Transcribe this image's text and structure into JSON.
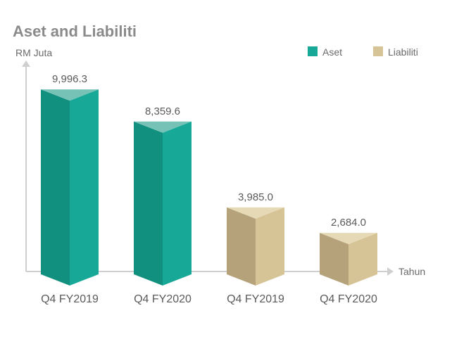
{
  "chart_data": {
    "type": "bar",
    "title": "Aset and Liabiliti",
    "ylabel": "RM Juta",
    "xlabel": "Tahun",
    "categories": [
      "Q4 FY2019",
      "Q4 FY2020",
      "Q4 FY2019",
      "Q4 FY2020"
    ],
    "values": [
      9996.3,
      8359.6,
      3985.0,
      2684.0
    ],
    "value_labels": [
      "9,996.3",
      "8,359.6",
      "3,985.0",
      "2,684.0"
    ],
    "series_of_bar": [
      "Aset",
      "Aset",
      "Liabiliti",
      "Liabiliti"
    ],
    "legend": [
      {
        "name": "Aset",
        "color": "#17a898"
      },
      {
        "name": "Liabiliti",
        "color": "#d6c396"
      }
    ],
    "legend_position": "top-right",
    "ylim": [
      0,
      10000
    ],
    "grid": false,
    "colors": {
      "Aset": {
        "front": "#17a898",
        "side": "#12907f",
        "top": "#76c2b7"
      },
      "Liabiliti": {
        "front": "#d6c396",
        "side": "#b5a27a",
        "top": "#e6d9b5"
      }
    }
  }
}
